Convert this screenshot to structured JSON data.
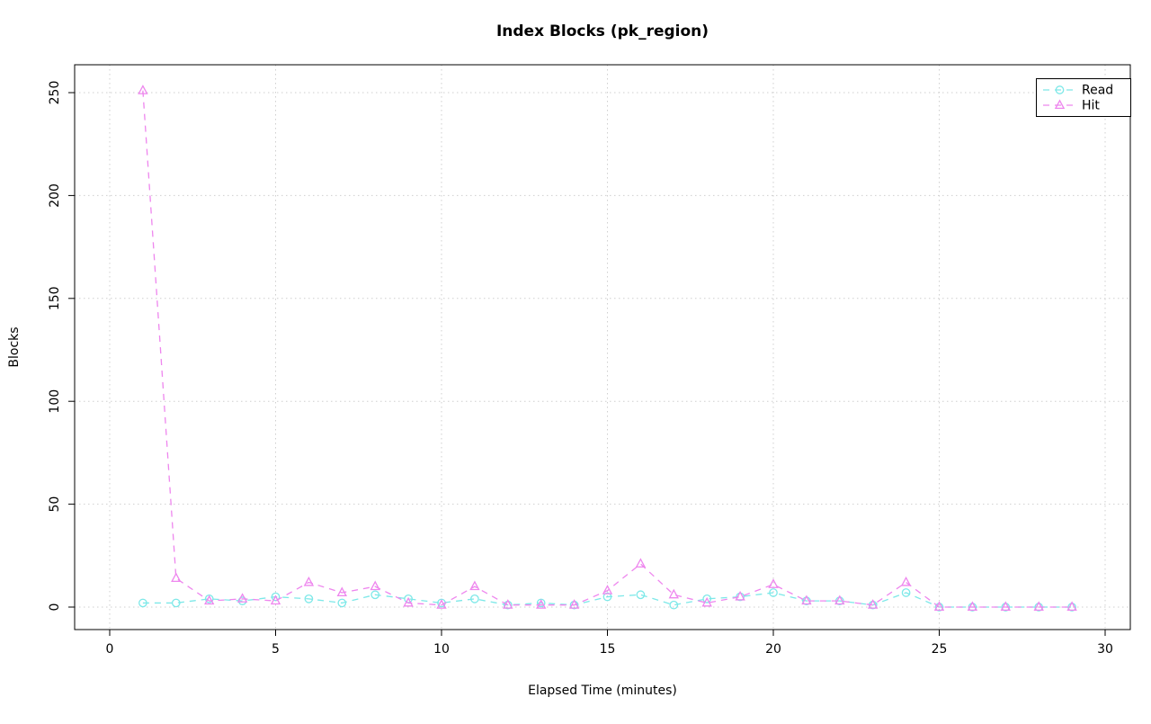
{
  "chart_data": {
    "type": "line",
    "title": "Index Blocks (pk_region)",
    "xlabel": "Elapsed Time (minutes)",
    "ylabel": "Blocks",
    "xlim": [
      0,
      30
    ],
    "ylim": [
      0,
      250
    ],
    "xticks": [
      0,
      5,
      10,
      15,
      20,
      25,
      30
    ],
    "yticks": [
      0,
      50,
      100,
      150,
      200,
      250
    ],
    "grid": true,
    "grid_style": "dotted",
    "legend_position": "top-right",
    "line_style": "dashed",
    "x": [
      1,
      2,
      3,
      4,
      5,
      6,
      7,
      8,
      9,
      10,
      11,
      12,
      13,
      14,
      15,
      16,
      17,
      18,
      19,
      20,
      21,
      22,
      23,
      24,
      25,
      26,
      27,
      28,
      29
    ],
    "series": [
      {
        "name": "Read",
        "marker": "circle",
        "color": "#7de8e8",
        "values": [
          2,
          2,
          4,
          3,
          5,
          4,
          2,
          6,
          4,
          2,
          4,
          1,
          2,
          1,
          5,
          6,
          1,
          4,
          5,
          7,
          3,
          3,
          1,
          7,
          0,
          0,
          0,
          0,
          0
        ]
      },
      {
        "name": "Hit",
        "marker": "triangle",
        "color": "#ee86ee",
        "values": [
          251,
          14,
          3,
          4,
          3,
          12,
          7,
          10,
          2,
          1,
          10,
          1,
          1,
          1,
          8,
          21,
          6,
          2,
          5,
          11,
          3,
          3,
          1,
          12,
          0,
          0,
          0,
          0,
          0
        ]
      }
    ]
  }
}
